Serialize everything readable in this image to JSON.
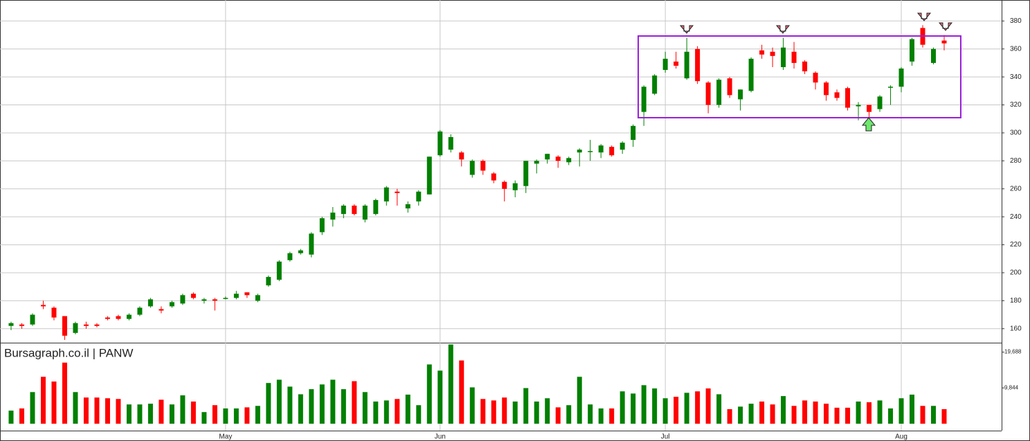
{
  "chart_data": [
    {
      "type": "candlestick",
      "open": [
        162,
        163,
        163,
        177,
        175,
        169,
        157,
        163,
        163,
        168,
        169,
        167,
        170,
        176,
        174,
        176,
        178,
        185,
        180,
        181,
        182,
        182,
        186,
        180,
        191,
        195,
        209,
        214,
        213,
        229,
        238,
        242,
        248,
        238,
        242,
        251,
        258,
        246,
        251,
        256,
        284,
        288,
        286,
        270,
        280,
        271,
        265,
        259,
        262,
        278,
        281,
        283,
        279,
        286,
        287,
        286,
        290,
        288,
        295,
        315,
        328,
        345,
        351,
        339,
        360,
        336,
        320,
        339,
        324,
        330,
        359,
        358,
        347,
        358,
        351,
        343,
        336,
        329,
        332,
        319,
        320,
        317,
        333,
        333,
        351,
        375,
        350,
        366
      ],
      "high": [
        165,
        164,
        171,
        180,
        176,
        169,
        165,
        165,
        164,
        169,
        170,
        171,
        176,
        182,
        176,
        180,
        185,
        186,
        182,
        182,
        183,
        187,
        186,
        185,
        198,
        209,
        215,
        217,
        229,
        240,
        247,
        249,
        249,
        249,
        253,
        262,
        260,
        251,
        259,
        283,
        302,
        299,
        287,
        281,
        281,
        272,
        266,
        266,
        280,
        281,
        285,
        284,
        283,
        289,
        295,
        292,
        291,
        294,
        306,
        334,
        342,
        358,
        358,
        368,
        362,
        337,
        339,
        340,
        331,
        354,
        363,
        361,
        368,
        365,
        352,
        344,
        337,
        331,
        333,
        322,
        320,
        327,
        334,
        347,
        368,
        377,
        361,
        370
      ],
      "low": [
        159,
        160,
        162,
        174,
        166,
        152,
        156,
        160,
        161,
        166,
        166,
        166,
        169,
        175,
        171,
        175,
        177,
        181,
        178,
        173,
        181,
        181,
        182,
        179,
        190,
        194,
        208,
        213,
        211,
        227,
        233,
        239,
        241,
        236,
        241,
        248,
        248,
        243,
        248,
        256,
        283,
        286,
        276,
        268,
        270,
        264,
        251,
        254,
        257,
        271,
        278,
        275,
        277,
        276,
        280,
        282,
        283,
        285,
        290,
        305,
        327,
        343,
        346,
        338,
        335,
        314,
        318,
        325,
        316,
        329,
        353,
        347,
        345,
        346,
        342,
        331,
        323,
        323,
        316,
        309,
        311,
        315,
        320,
        329,
        348,
        361,
        349,
        359
      ],
      "close": [
        164,
        162,
        170,
        176,
        168,
        155,
        164,
        162,
        162,
        167,
        167,
        170,
        175,
        181,
        173,
        179,
        184,
        182,
        181,
        180,
        182,
        185,
        184,
        184,
        197,
        208,
        214,
        216,
        228,
        239,
        243,
        248,
        242,
        248,
        252,
        261,
        257,
        249,
        258,
        283,
        301,
        297,
        281,
        280,
        273,
        266,
        260,
        264,
        280,
        280,
        285,
        280,
        282,
        288,
        287,
        291,
        284,
        293,
        305,
        333,
        341,
        353,
        348,
        358,
        337,
        320,
        338,
        327,
        331,
        353,
        356,
        355,
        361,
        350,
        344,
        336,
        327,
        325,
        318,
        320,
        315,
        326,
        333,
        346,
        367,
        363,
        360,
        364
      ],
      "up_color": "#008000",
      "down_color": "#ff0000",
      "ylim": [
        150,
        395
      ],
      "yticks": [
        160,
        180,
        200,
        220,
        240,
        260,
        280,
        300,
        320,
        340,
        360,
        380
      ],
      "grid": true
    },
    {
      "type": "bar",
      "title": "Bursagraph.co.il | PANW",
      "categories": [
        null,
        null,
        null,
        null,
        null,
        null,
        null,
        null,
        null,
        null,
        null,
        null,
        null,
        null,
        null,
        null,
        null,
        null,
        null,
        null,
        "May",
        null,
        null,
        null,
        null,
        null,
        null,
        null,
        null,
        null,
        null,
        null,
        null,
        null,
        null,
        null,
        null,
        null,
        null,
        null,
        "Jun",
        null,
        null,
        null,
        null,
        null,
        null,
        null,
        null,
        null,
        null,
        null,
        null,
        null,
        null,
        null,
        null,
        null,
        null,
        null,
        null,
        "Jul",
        null,
        null,
        null,
        null,
        null,
        null,
        null,
        null,
        null,
        null,
        null,
        null,
        null,
        null,
        null,
        null,
        null,
        null,
        null,
        null,
        null,
        "Aug",
        null,
        null,
        null,
        null
      ],
      "values": [
        3600,
        4200,
        8700,
        12900,
        11600,
        16800,
        8700,
        7200,
        7200,
        7000,
        6800,
        5300,
        5300,
        5500,
        6600,
        5300,
        7800,
        6100,
        3200,
        5100,
        4200,
        4200,
        4500,
        4900,
        11200,
        12100,
        10200,
        8100,
        9500,
        10800,
        12100,
        9500,
        11700,
        8700,
        6100,
        6400,
        6800,
        8000,
        5100,
        16300,
        14600,
        21800,
        17400,
        10000,
        6800,
        6400,
        7200,
        6100,
        9800,
        6100,
        7000,
        4500,
        5100,
        12900,
        5300,
        4200,
        4200,
        8900,
        8300,
        10600,
        9700,
        7000,
        7400,
        8500,
        8900,
        9700,
        8100,
        4000,
        4700,
        5500,
        6100,
        5300,
        7600,
        4900,
        6400,
        6100,
        5500,
        4400,
        4400,
        6100,
        5900,
        6400,
        4200,
        7000,
        8000,
        4900,
        4900,
        4000
      ],
      "ylim": [
        -1900,
        21900
      ],
      "yticks": [
        {
          "value": 9844,
          "label": "9,844"
        },
        {
          "value": 19688,
          "label": "19,688"
        }
      ]
    }
  ]
}
